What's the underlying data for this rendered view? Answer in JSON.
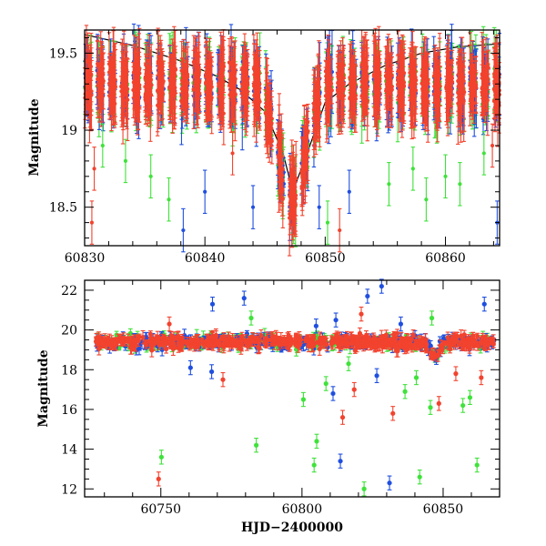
{
  "colors": {
    "green": "#3fe23a",
    "blue": "#1f4fe0",
    "red": "#f2432e",
    "model": "#000000"
  },
  "chart_data": [
    {
      "id": "top",
      "type": "scatter",
      "xlim": [
        60830,
        60864.5
      ],
      "ylim": [
        19.65,
        18.25
      ],
      "y_inverted": true,
      "xticks": [
        60830,
        60840,
        60850,
        60860
      ],
      "yticks": [
        18.5,
        19,
        19.5
      ],
      "ytick_labels": [
        "18.5",
        "19",
        "19.5"
      ],
      "xlabel": "",
      "ylabel": "Magnitude",
      "baseline_mag": 19.3,
      "night_centers": [
        60830.3,
        60831.3,
        60832.3,
        60833.3,
        60834.3,
        60835.3,
        60836.3,
        60837.3,
        60838.3,
        60839.3,
        60840.3,
        60841.3,
        60842.3,
        60843.3,
        60844.3,
        60845.3,
        60846.3,
        60847.3,
        60848.3,
        60849.3,
        60850.3,
        60851.3,
        60852.3,
        60853.3,
        60854.3,
        60855.3,
        60856.3,
        60857.3,
        60858.3,
        60859.3,
        60860.3,
        60861.3,
        60862.3,
        60863.3,
        60864.3
      ],
      "flare": {
        "peak_hjd": 60847.2,
        "peak_mag": 18.55,
        "width_days": 1.1
      },
      "model_curve": {
        "x": [
          60830,
          60834,
          60838,
          60841,
          60843,
          60845,
          60846.5,
          60847.3,
          60848.5,
          60850,
          60852,
          60855,
          60858,
          60861,
          60864.5
        ],
        "y": [
          19.62,
          19.55,
          19.45,
          19.35,
          19.26,
          19.12,
          18.85,
          18.6,
          18.85,
          19.18,
          19.3,
          19.42,
          19.5,
          19.54,
          19.56
        ]
      },
      "outliers": [
        {
          "x": 60830.6,
          "y": 18.4,
          "series": "red"
        },
        {
          "x": 60830.8,
          "y": 18.75,
          "series": "red"
        },
        {
          "x": 60831.5,
          "y": 18.9,
          "series": "green"
        },
        {
          "x": 60833.4,
          "y": 18.8,
          "series": "green"
        },
        {
          "x": 60835.5,
          "y": 18.7,
          "series": "green"
        },
        {
          "x": 60837.0,
          "y": 18.55,
          "series": "green"
        },
        {
          "x": 60838.2,
          "y": 18.35,
          "series": "blue"
        },
        {
          "x": 60840.0,
          "y": 18.6,
          "series": "blue"
        },
        {
          "x": 60842.3,
          "y": 18.85,
          "series": "red"
        },
        {
          "x": 60844.0,
          "y": 18.5,
          "series": "blue"
        },
        {
          "x": 60849.5,
          "y": 18.5,
          "series": "blue"
        },
        {
          "x": 60850.2,
          "y": 18.4,
          "series": "green"
        },
        {
          "x": 60851.2,
          "y": 18.35,
          "series": "red"
        },
        {
          "x": 60852.0,
          "y": 18.6,
          "series": "blue"
        },
        {
          "x": 60855.3,
          "y": 18.65,
          "series": "green"
        },
        {
          "x": 60857.3,
          "y": 18.75,
          "series": "green"
        },
        {
          "x": 60858.4,
          "y": 18.55,
          "series": "green"
        },
        {
          "x": 60860.0,
          "y": 18.7,
          "series": "green"
        },
        {
          "x": 60861.2,
          "y": 18.65,
          "series": "green"
        },
        {
          "x": 60863.2,
          "y": 18.85,
          "series": "green"
        },
        {
          "x": 60863.9,
          "y": 18.9,
          "series": "red"
        },
        {
          "x": 60864.3,
          "y": 18.4,
          "series": "blue"
        }
      ]
    },
    {
      "id": "bottom",
      "type": "scatter",
      "xlim": [
        60723,
        60870
      ],
      "ylim": [
        22.5,
        11.6
      ],
      "y_inverted": true,
      "xticks": [
        60750,
        60800,
        60850
      ],
      "yticks": [
        12,
        14,
        16,
        18,
        20,
        22
      ],
      "ytick_labels": [
        "12",
        "14",
        "16",
        "18",
        "20",
        "22"
      ],
      "xlabel": "HJD−2400000",
      "ylabel": "Magnitude",
      "baseline_mag": 19.4,
      "data_range": [
        60727,
        60868
      ],
      "flare": {
        "peak_hjd": 60847.2,
        "peak_mag": 18.6,
        "width_days": 1.4
      },
      "outliers": [
        {
          "x": 60749.2,
          "y": 12.5,
          "series": "red"
        },
        {
          "x": 60750.2,
          "y": 13.6,
          "series": "green"
        },
        {
          "x": 60783.8,
          "y": 14.2,
          "series": "green"
        },
        {
          "x": 60804.3,
          "y": 13.2,
          "series": "green"
        },
        {
          "x": 60805.2,
          "y": 14.4,
          "series": "green"
        },
        {
          "x": 60813.6,
          "y": 13.4,
          "series": "blue"
        },
        {
          "x": 60814.4,
          "y": 15.6,
          "series": "red"
        },
        {
          "x": 60822.0,
          "y": 12.0,
          "series": "green"
        },
        {
          "x": 60831.0,
          "y": 12.3,
          "series": "blue"
        },
        {
          "x": 60832.2,
          "y": 15.8,
          "series": "red"
        },
        {
          "x": 60841.7,
          "y": 12.6,
          "series": "green"
        },
        {
          "x": 60848.5,
          "y": 16.3,
          "series": "red"
        },
        {
          "x": 60859.5,
          "y": 16.6,
          "series": "green"
        },
        {
          "x": 60862.0,
          "y": 13.2,
          "series": "green"
        },
        {
          "x": 60864.6,
          "y": 21.3,
          "series": "blue"
        },
        {
          "x": 60768.3,
          "y": 21.3,
          "series": "blue"
        },
        {
          "x": 60779.5,
          "y": 21.6,
          "series": "blue"
        },
        {
          "x": 60828.2,
          "y": 22.2,
          "series": "blue"
        },
        {
          "x": 60823.2,
          "y": 21.7,
          "series": "blue"
        },
        {
          "x": 60760.5,
          "y": 18.1,
          "series": "blue"
        },
        {
          "x": 60768.0,
          "y": 17.9,
          "series": "blue"
        },
        {
          "x": 60772.0,
          "y": 17.5,
          "series": "red"
        },
        {
          "x": 60800.5,
          "y": 16.5,
          "series": "green"
        },
        {
          "x": 60808.5,
          "y": 17.3,
          "series": "green"
        },
        {
          "x": 60811.0,
          "y": 16.8,
          "series": "blue"
        },
        {
          "x": 60816.5,
          "y": 18.3,
          "series": "green"
        },
        {
          "x": 60818.5,
          "y": 17.0,
          "series": "red"
        },
        {
          "x": 60826.5,
          "y": 17.7,
          "series": "blue"
        },
        {
          "x": 60836.5,
          "y": 16.9,
          "series": "green"
        },
        {
          "x": 60840.5,
          "y": 17.6,
          "series": "green"
        },
        {
          "x": 60845.5,
          "y": 16.1,
          "series": "green"
        },
        {
          "x": 60854.5,
          "y": 17.8,
          "series": "red"
        },
        {
          "x": 60857.0,
          "y": 16.2,
          "series": "green"
        },
        {
          "x": 60863.5,
          "y": 17.6,
          "series": "red"
        },
        {
          "x": 60753.0,
          "y": 20.3,
          "series": "red"
        },
        {
          "x": 60782.0,
          "y": 20.6,
          "series": "green"
        },
        {
          "x": 60805.0,
          "y": 20.2,
          "series": "blue"
        },
        {
          "x": 60812.0,
          "y": 20.5,
          "series": "blue"
        },
        {
          "x": 60821.0,
          "y": 20.8,
          "series": "red"
        },
        {
          "x": 60835.0,
          "y": 20.3,
          "series": "blue"
        },
        {
          "x": 60846.0,
          "y": 20.6,
          "series": "green"
        }
      ]
    }
  ]
}
